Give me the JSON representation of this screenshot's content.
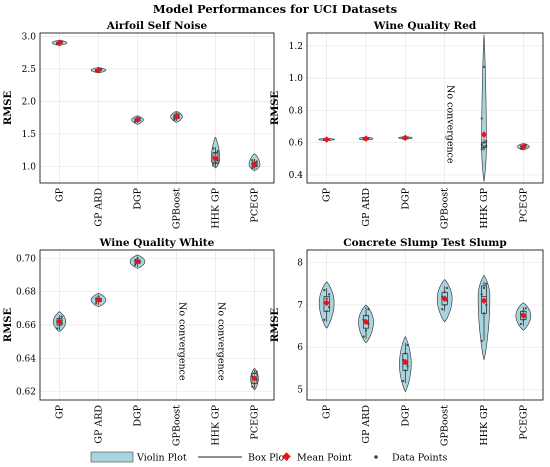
{
  "figure_title": "Model Performances for UCI Datasets",
  "legend": {
    "violin": "Violin Plot",
    "box": "Box Plot",
    "mean": "Mean Point",
    "points": "Data Points",
    "colors": {
      "violin_fill": "#a9d3de",
      "mean": "#e8141c",
      "points": "#444444"
    }
  },
  "chart_data": [
    {
      "type": "violin",
      "title": "Airfoil Self Noise",
      "ylabel": "RMSE",
      "categories": [
        "GP",
        "GP ARD",
        "DGP",
        "GPBoost",
        "HHK GP",
        "PCEGP"
      ],
      "ylim": [
        0.75,
        3.05
      ],
      "yticks": [
        "1.0",
        "1.5",
        "2.0",
        "2.5",
        "3.0"
      ],
      "series": [
        {
          "mean": 2.9,
          "q1": 2.89,
          "median": 2.9,
          "q3": 2.91,
          "min": 2.87,
          "max": 2.93,
          "vmin": 2.86,
          "vmax": 2.94,
          "width": 0.38,
          "points": [
            2.88,
            2.89,
            2.9,
            2.9,
            2.91,
            2.92,
            2.89,
            2.91
          ]
        },
        {
          "mean": 2.48,
          "q1": 2.47,
          "median": 2.48,
          "q3": 2.49,
          "min": 2.45,
          "max": 2.51,
          "vmin": 2.44,
          "vmax": 2.52,
          "width": 0.38,
          "points": [
            2.46,
            2.47,
            2.48,
            2.48,
            2.49,
            2.5,
            2.47,
            2.49
          ]
        },
        {
          "mean": 1.72,
          "q1": 1.7,
          "median": 1.72,
          "q3": 1.74,
          "min": 1.67,
          "max": 1.76,
          "vmin": 1.65,
          "vmax": 1.78,
          "width": 0.3,
          "points": [
            1.69,
            1.7,
            1.71,
            1.72,
            1.73,
            1.74,
            1.7,
            1.75
          ]
        },
        {
          "mean": 1.77,
          "q1": 1.74,
          "median": 1.77,
          "q3": 1.8,
          "min": 1.7,
          "max": 1.83,
          "vmin": 1.68,
          "vmax": 1.85,
          "width": 0.3,
          "points": [
            1.72,
            1.74,
            1.76,
            1.77,
            1.78,
            1.8,
            1.75,
            1.82
          ]
        },
        {
          "mean": 1.13,
          "q1": 1.05,
          "median": 1.12,
          "q3": 1.22,
          "min": 1.0,
          "max": 1.3,
          "vmin": 0.98,
          "vmax": 1.45,
          "width": 0.22,
          "points": [
            1.02,
            1.06,
            1.1,
            1.14,
            1.2,
            1.24,
            1.28,
            1.08
          ]
        },
        {
          "mean": 1.04,
          "q1": 1.0,
          "median": 1.03,
          "q3": 1.07,
          "min": 0.96,
          "max": 1.12,
          "vmin": 0.94,
          "vmax": 1.2,
          "width": 0.28,
          "points": [
            0.98,
            1.0,
            1.02,
            1.04,
            1.06,
            1.08,
            1.1,
            1.03
          ]
        }
      ]
    },
    {
      "type": "violin",
      "title": "Wine Quality Red",
      "ylabel": "RMSE",
      "categories": [
        "GP",
        "GP ARD",
        "DGP",
        "GPBoost",
        "HHK GP",
        "PCEGP"
      ],
      "ylim": [
        0.35,
        1.28
      ],
      "yticks": [
        "0.4",
        "0.6",
        "0.8",
        "1.0",
        "1.2"
      ],
      "annotations": [
        {
          "category_index": 3,
          "text": "No convergence"
        }
      ],
      "series": [
        {
          "mean": 0.62,
          "q1": 0.618,
          "median": 0.62,
          "q3": 0.622,
          "min": 0.615,
          "max": 0.625,
          "vmin": 0.613,
          "vmax": 0.627,
          "width": 0.4,
          "points": [
            0.617,
            0.619,
            0.62,
            0.621,
            0.623
          ]
        },
        {
          "mean": 0.625,
          "q1": 0.622,
          "median": 0.625,
          "q3": 0.628,
          "min": 0.618,
          "max": 0.632,
          "vmin": 0.615,
          "vmax": 0.635,
          "width": 0.35,
          "points": [
            0.62,
            0.623,
            0.625,
            0.627,
            0.63
          ]
        },
        {
          "mean": 0.63,
          "q1": 0.627,
          "median": 0.63,
          "q3": 0.633,
          "min": 0.624,
          "max": 0.636,
          "vmin": 0.622,
          "vmax": 0.638,
          "width": 0.35,
          "points": [
            0.626,
            0.628,
            0.63,
            0.632,
            0.634
          ]
        },
        null,
        {
          "mean": 0.65,
          "q1": 0.57,
          "median": 0.58,
          "q3": 0.6,
          "min": 0.55,
          "max": 0.62,
          "vmin": 0.36,
          "vmax": 1.27,
          "width": 0.12,
          "points": [
            0.56,
            0.57,
            0.58,
            0.59,
            0.6,
            0.61,
            0.75,
            1.07
          ]
        },
        {
          "mean": 0.575,
          "q1": 0.568,
          "median": 0.575,
          "q3": 0.582,
          "min": 0.56,
          "max": 0.59,
          "vmin": 0.555,
          "vmax": 0.595,
          "width": 0.3,
          "points": [
            0.562,
            0.568,
            0.573,
            0.577,
            0.582,
            0.588
          ]
        }
      ]
    },
    {
      "type": "violin",
      "title": "Wine Quality White",
      "ylabel": "RMSE",
      "categories": [
        "GP",
        "GP ARD",
        "DGP",
        "GPBoost",
        "HHK GP",
        "PCEGP"
      ],
      "ylim": [
        0.615,
        0.705
      ],
      "yticks": [
        "0.62",
        "0.64",
        "0.66",
        "0.68",
        "0.70"
      ],
      "annotations": [
        {
          "category_index": 3,
          "text": "No convergence"
        },
        {
          "category_index": 4,
          "text": "No convergence"
        }
      ],
      "series": [
        {
          "mean": 0.662,
          "q1": 0.66,
          "median": 0.662,
          "q3": 0.664,
          "min": 0.657,
          "max": 0.666,
          "vmin": 0.656,
          "vmax": 0.668,
          "width": 0.32,
          "points": [
            0.658,
            0.66,
            0.661,
            0.662,
            0.663,
            0.665
          ]
        },
        {
          "mean": 0.675,
          "q1": 0.674,
          "median": 0.675,
          "q3": 0.676,
          "min": 0.672,
          "max": 0.678,
          "vmin": 0.671,
          "vmax": 0.679,
          "width": 0.38,
          "points": [
            0.673,
            0.674,
            0.675,
            0.676,
            0.677
          ]
        },
        {
          "mean": 0.698,
          "q1": 0.697,
          "median": 0.698,
          "q3": 0.699,
          "min": 0.695,
          "max": 0.701,
          "vmin": 0.694,
          "vmax": 0.702,
          "width": 0.38,
          "points": [
            0.696,
            0.697,
            0.698,
            0.699,
            0.7
          ]
        },
        null,
        null,
        {
          "mean": 0.628,
          "q1": 0.625,
          "median": 0.628,
          "q3": 0.631,
          "min": 0.622,
          "max": 0.633,
          "vmin": 0.621,
          "vmax": 0.634,
          "width": 0.2,
          "points": [
            0.623,
            0.625,
            0.627,
            0.629,
            0.631,
            0.632
          ]
        }
      ]
    },
    {
      "type": "violin",
      "title": "Concrete Slump Test Slump",
      "ylabel": "RMSE",
      "categories": [
        "GP",
        "GP ARD",
        "DGP",
        "GPBoost",
        "HHK GP",
        "PCEGP"
      ],
      "ylim": [
        4.75,
        8.3
      ],
      "yticks": [
        "5",
        "6",
        "7",
        "8"
      ],
      "series": [
        {
          "mean": 7.05,
          "q1": 6.85,
          "median": 7.05,
          "q3": 7.2,
          "min": 6.6,
          "max": 7.4,
          "vmin": 6.45,
          "vmax": 7.55,
          "width": 0.38,
          "points": [
            6.65,
            6.85,
            6.95,
            7.05,
            7.15,
            7.25,
            7.35
          ]
        },
        {
          "mean": 6.6,
          "q1": 6.45,
          "median": 6.6,
          "q3": 6.75,
          "min": 6.2,
          "max": 6.95,
          "vmin": 6.1,
          "vmax": 7.0,
          "width": 0.38,
          "points": [
            6.25,
            6.4,
            6.55,
            6.65,
            6.75,
            6.9
          ]
        },
        {
          "mean": 5.65,
          "q1": 5.45,
          "median": 5.6,
          "q3": 5.85,
          "min": 5.15,
          "max": 6.1,
          "vmin": 4.95,
          "vmax": 6.25,
          "width": 0.3,
          "points": [
            5.2,
            5.45,
            5.55,
            5.7,
            5.85,
            6.05
          ]
        },
        {
          "mean": 7.15,
          "q1": 7.0,
          "median": 7.15,
          "q3": 7.3,
          "min": 6.85,
          "max": 7.45,
          "vmin": 6.6,
          "vmax": 7.6,
          "width": 0.38,
          "points": [
            6.9,
            7.0,
            7.1,
            7.2,
            7.3,
            7.4
          ]
        },
        {
          "mean": 7.1,
          "q1": 6.8,
          "median": 7.2,
          "q3": 7.45,
          "min": 6.15,
          "max": 7.55,
          "vmin": 5.7,
          "vmax": 7.7,
          "width": 0.3,
          "points": [
            6.15,
            6.8,
            7.0,
            7.25,
            7.4,
            7.5
          ]
        },
        {
          "mean": 6.75,
          "q1": 6.65,
          "median": 6.75,
          "q3": 6.85,
          "min": 6.5,
          "max": 6.95,
          "vmin": 6.4,
          "vmax": 7.05,
          "width": 0.38,
          "points": [
            6.55,
            6.65,
            6.72,
            6.78,
            6.85,
            6.92
          ]
        }
      ]
    }
  ]
}
